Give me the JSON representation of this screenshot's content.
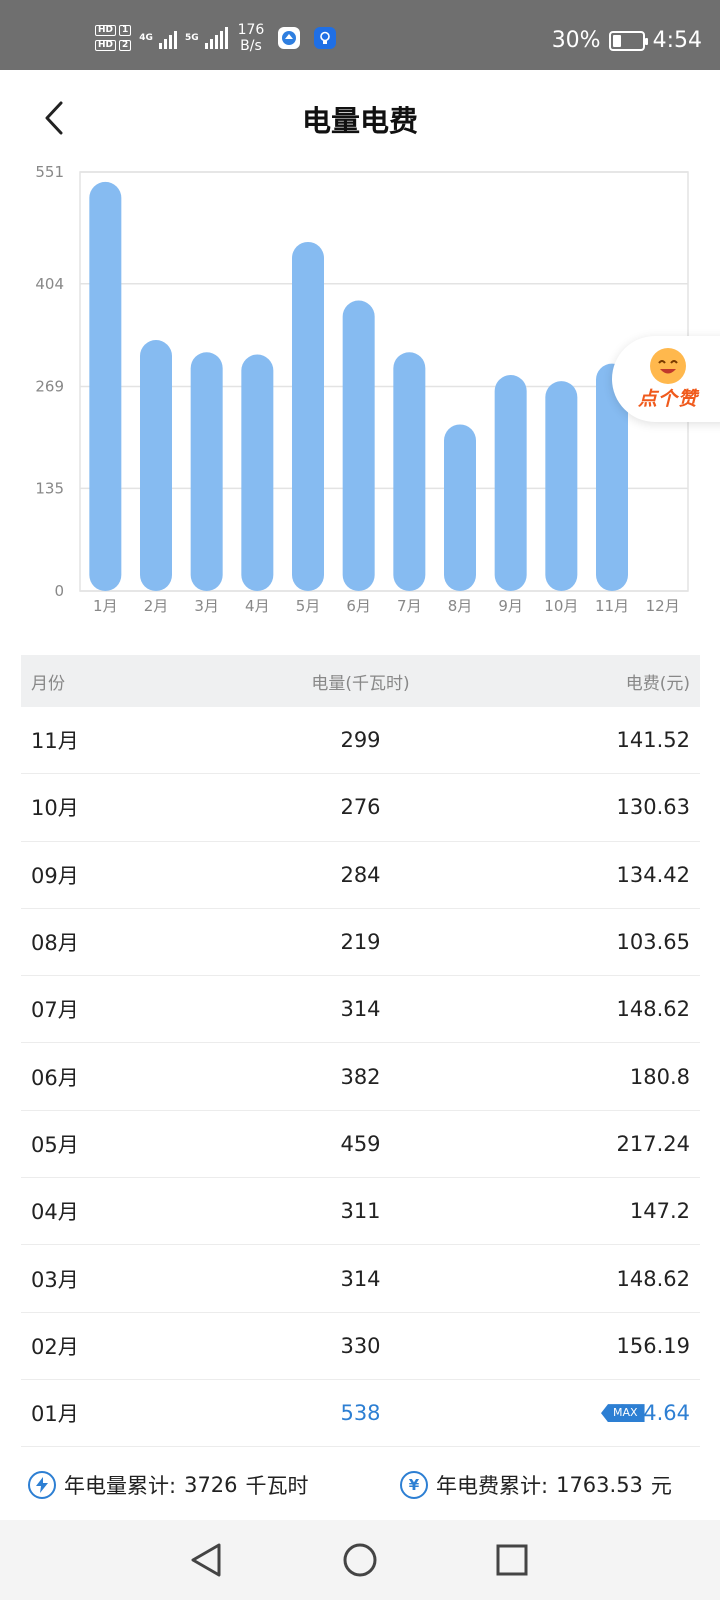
{
  "status_bar": {
    "hd1": "HD",
    "sim1": "1",
    "hd2": "HD",
    "sim2": "2",
    "net1": "4G",
    "net2": "5G",
    "speed_value": "176",
    "speed_unit": "B/s",
    "battery_percent": "30%",
    "battery_level": 0.3,
    "time": "4:54"
  },
  "header": {
    "title": "电量电费"
  },
  "like_widget": {
    "label": "点个赞"
  },
  "chart_data": {
    "type": "bar",
    "categories": [
      "1月",
      "2月",
      "3月",
      "4月",
      "5月",
      "6月",
      "7月",
      "8月",
      "9月",
      "10月",
      "11月",
      "12月"
    ],
    "values": [
      538,
      330,
      314,
      311,
      459,
      382,
      314,
      219,
      284,
      276,
      299,
      null
    ],
    "y_ticks": [
      0,
      135,
      269,
      404,
      551
    ],
    "ylim": [
      0,
      551
    ],
    "bar_color": "#86bbf1",
    "grid": true
  },
  "table": {
    "headers": {
      "month": "月份",
      "kwh": "电量(千瓦时)",
      "fee": "电费(元)"
    },
    "rows": [
      {
        "month": "11月",
        "kwh": "299",
        "fee": "141.52"
      },
      {
        "month": "10月",
        "kwh": "276",
        "fee": "130.63"
      },
      {
        "month": "09月",
        "kwh": "284",
        "fee": "134.42"
      },
      {
        "month": "08月",
        "kwh": "219",
        "fee": "103.65"
      },
      {
        "month": "07月",
        "kwh": "314",
        "fee": "148.62"
      },
      {
        "month": "06月",
        "kwh": "382",
        "fee": "180.8"
      },
      {
        "month": "05月",
        "kwh": "459",
        "fee": "217.24"
      },
      {
        "month": "04月",
        "kwh": "311",
        "fee": "147.2"
      },
      {
        "month": "03月",
        "kwh": "314",
        "fee": "148.62"
      },
      {
        "month": "02月",
        "kwh": "330",
        "fee": "156.19"
      },
      {
        "month": "01月",
        "kwh": "538",
        "fee": "254.64",
        "max": true
      }
    ],
    "max_badge": "MAX"
  },
  "summary": {
    "kwh_label": "年电量累计:",
    "kwh_value": "3726",
    "kwh_unit": "千瓦时",
    "fee_icon": "¥",
    "fee_label": "年电费累计:",
    "fee_value": "1763.53",
    "fee_unit": "元"
  },
  "icons": {
    "back": "chevron-left-icon",
    "nav_back": "triangle-back-icon",
    "nav_home": "circle-home-icon",
    "nav_recent": "square-recent-icon",
    "kwh": "lightning-icon",
    "fee": "yen-icon"
  },
  "colors": {
    "accent": "#2d7fd3",
    "bar": "#86bbf1",
    "status_bar": "#6f6f6f",
    "like_text": "#f05a1c"
  }
}
